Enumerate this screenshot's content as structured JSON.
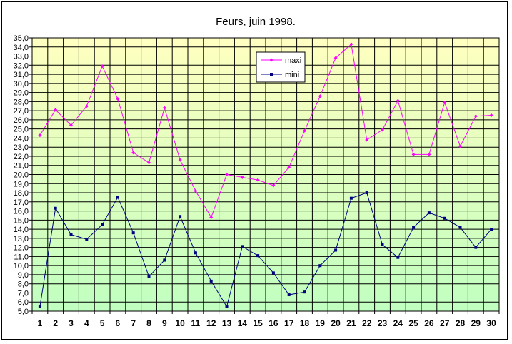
{
  "chart_data": {
    "type": "line",
    "title": "Feurs, juin 1998.",
    "xlabel": "",
    "ylabel": "",
    "x": [
      1,
      2,
      3,
      4,
      5,
      6,
      7,
      8,
      9,
      10,
      11,
      12,
      13,
      14,
      15,
      16,
      17,
      18,
      19,
      20,
      21,
      22,
      23,
      24,
      25,
      26,
      27,
      28,
      29,
      30
    ],
    "ylim": [
      5.0,
      35.0
    ],
    "ystep": 1.0,
    "ytick_labels": [
      "5,0",
      "6,0",
      "7,0",
      "8,0",
      "9,0",
      "10,0",
      "11,0",
      "12,0",
      "13,0",
      "14,0",
      "15,0",
      "16,0",
      "17,0",
      "18,0",
      "19,0",
      "20,0",
      "21,0",
      "22,0",
      "23,0",
      "24,0",
      "25,0",
      "26,0",
      "27,0",
      "28,0",
      "29,0",
      "30,0",
      "31,0",
      "32,0",
      "33,0",
      "34,0",
      "35,0"
    ],
    "grid": true,
    "legend_position": "top-center",
    "background_gradient": {
      "top": "#ffffc0",
      "bottom": "#c0ffc0"
    },
    "series": [
      {
        "name": "maxi",
        "color": "#ff00ff",
        "marker": "diamond",
        "values": [
          24.3,
          27.1,
          25.4,
          27.5,
          31.9,
          28.3,
          22.4,
          21.3,
          27.3,
          21.6,
          18.2,
          15.3,
          20.0,
          19.7,
          19.4,
          18.8,
          20.8,
          24.8,
          28.6,
          32.8,
          34.3,
          23.8,
          24.9,
          28.1,
          22.2,
          22.2,
          27.9,
          23.1,
          26.4,
          26.5
        ]
      },
      {
        "name": "mini",
        "color": "#000080",
        "marker": "square",
        "values": [
          5.5,
          16.3,
          13.4,
          12.9,
          14.5,
          17.5,
          13.6,
          8.8,
          10.6,
          15.4,
          11.4,
          8.3,
          5.5,
          12.1,
          11.1,
          9.2,
          6.8,
          7.1,
          10.0,
          11.7,
          17.4,
          18.0,
          12.3,
          10.9,
          14.2,
          15.8,
          15.2,
          14.2,
          12.0,
          14.0
        ]
      }
    ]
  }
}
